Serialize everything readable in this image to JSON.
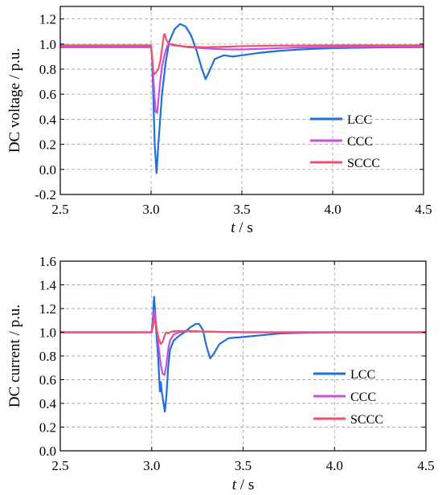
{
  "chart_data": [
    {
      "type": "line",
      "xlabel_italic": "t",
      "xlabel_unit": " / s",
      "ylabel": "DC voltage / p.u.",
      "xlim": [
        2.5,
        4.5
      ],
      "ylim": [
        -0.2,
        1.3
      ],
      "xticks": [
        "2.5",
        "3.0",
        "3.5",
        "4.0",
        "4.5"
      ],
      "yticks": [
        "-0.2",
        "0.0",
        "0.2",
        "0.4",
        "0.6",
        "0.8",
        "1.0",
        "1.2"
      ],
      "grid": true,
      "legend_position": "lower-right",
      "series": [
        {
          "name": "LCC",
          "color": "#1f6fd6",
          "points": [
            [
              2.5,
              0.975
            ],
            [
              3.0,
              0.975
            ],
            [
              3.005,
              0.9
            ],
            [
              3.012,
              0.6
            ],
            [
              3.02,
              0.2
            ],
            [
              3.03,
              -0.03
            ],
            [
              3.04,
              0.2
            ],
            [
              3.06,
              0.6
            ],
            [
              3.08,
              0.85
            ],
            [
              3.1,
              1.02
            ],
            [
              3.13,
              1.12
            ],
            [
              3.16,
              1.16
            ],
            [
              3.19,
              1.14
            ],
            [
              3.22,
              1.07
            ],
            [
              3.25,
              0.95
            ],
            [
              3.28,
              0.8
            ],
            [
              3.3,
              0.72
            ],
            [
              3.32,
              0.78
            ],
            [
              3.35,
              0.88
            ],
            [
              3.4,
              0.91
            ],
            [
              3.45,
              0.9
            ],
            [
              3.5,
              0.91
            ],
            [
              3.6,
              0.93
            ],
            [
              3.7,
              0.945
            ],
            [
              3.8,
              0.955
            ],
            [
              3.9,
              0.962
            ],
            [
              4.0,
              0.967
            ],
            [
              4.2,
              0.972
            ],
            [
              4.5,
              0.975
            ]
          ]
        },
        {
          "name": "CCC",
          "color": "#c84fe0",
          "points": [
            [
              2.5,
              0.98
            ],
            [
              3.0,
              0.98
            ],
            [
              3.008,
              0.85
            ],
            [
              3.018,
              0.6
            ],
            [
              3.025,
              0.46
            ],
            [
              3.033,
              0.45
            ],
            [
              3.04,
              0.55
            ],
            [
              3.05,
              0.7
            ],
            [
              3.06,
              0.82
            ],
            [
              3.075,
              0.92
            ],
            [
              3.09,
              0.99
            ],
            [
              3.11,
              1.0
            ],
            [
              3.14,
              0.99
            ],
            [
              3.2,
              0.975
            ],
            [
              3.3,
              0.965
            ],
            [
              3.4,
              0.958
            ],
            [
              3.5,
              0.957
            ],
            [
              3.6,
              0.962
            ],
            [
              3.7,
              0.967
            ],
            [
              3.8,
              0.972
            ],
            [
              4.0,
              0.976
            ],
            [
              4.5,
              0.98
            ]
          ]
        },
        {
          "name": "SCCC",
          "color": "#f0506e",
          "points": [
            [
              2.5,
              0.99
            ],
            [
              3.0,
              0.99
            ],
            [
              3.006,
              0.9
            ],
            [
              3.012,
              0.78
            ],
            [
              3.02,
              0.76
            ],
            [
              3.03,
              0.78
            ],
            [
              3.04,
              0.8
            ],
            [
              3.05,
              0.86
            ],
            [
              3.06,
              0.96
            ],
            [
              3.07,
              1.07
            ],
            [
              3.075,
              1.08
            ],
            [
              3.085,
              1.03
            ],
            [
              3.1,
              1.0
            ],
            [
              3.12,
              0.99
            ],
            [
              3.15,
              0.985
            ],
            [
              3.2,
              0.98
            ],
            [
              3.3,
              0.975
            ],
            [
              3.4,
              0.978
            ],
            [
              3.5,
              0.983
            ],
            [
              3.7,
              0.987
            ],
            [
              4.0,
              0.99
            ],
            [
              4.5,
              0.99
            ]
          ]
        }
      ]
    },
    {
      "type": "line",
      "xlabel_italic": "t",
      "xlabel_unit": " / s",
      "ylabel": "DC current / p.u.",
      "xlim": [
        2.5,
        4.5
      ],
      "ylim": [
        0.0,
        1.6
      ],
      "xticks": [
        "2.5",
        "3.0",
        "3.5",
        "4.0",
        "4.5"
      ],
      "yticks": [
        "0.0",
        "0.2",
        "0.4",
        "0.6",
        "0.8",
        "1.0",
        "1.2",
        "1.4",
        "1.6"
      ],
      "grid": true,
      "legend_position": "lower-right",
      "series": [
        {
          "name": "LCC",
          "color": "#1f6fd6",
          "points": [
            [
              2.5,
              1.0
            ],
            [
              3.0,
              1.0
            ],
            [
              3.008,
              1.15
            ],
            [
              3.013,
              1.3
            ],
            [
              3.018,
              1.2
            ],
            [
              3.025,
              1.0
            ],
            [
              3.035,
              0.8
            ],
            [
              3.045,
              0.5
            ],
            [
              3.05,
              0.58
            ],
            [
              3.055,
              0.5
            ],
            [
              3.065,
              0.4
            ],
            [
              3.072,
              0.33
            ],
            [
              3.08,
              0.45
            ],
            [
              3.09,
              0.7
            ],
            [
              3.1,
              0.85
            ],
            [
              3.12,
              0.93
            ],
            [
              3.15,
              0.97
            ],
            [
              3.18,
              1.0
            ],
            [
              3.21,
              1.04
            ],
            [
              3.24,
              1.07
            ],
            [
              3.26,
              1.07
            ],
            [
              3.28,
              1.02
            ],
            [
              3.3,
              0.88
            ],
            [
              3.32,
              0.78
            ],
            [
              3.34,
              0.82
            ],
            [
              3.37,
              0.9
            ],
            [
              3.42,
              0.95
            ],
            [
              3.5,
              0.96
            ],
            [
              3.6,
              0.975
            ],
            [
              3.7,
              0.99
            ],
            [
              3.8,
              0.995
            ],
            [
              4.0,
              1.0
            ],
            [
              4.5,
              1.0
            ]
          ]
        },
        {
          "name": "CCC",
          "color": "#c84fe0",
          "points": [
            [
              2.5,
              1.0
            ],
            [
              3.0,
              1.0
            ],
            [
              3.008,
              1.1
            ],
            [
              3.014,
              1.19
            ],
            [
              3.02,
              1.12
            ],
            [
              3.03,
              1.0
            ],
            [
              3.04,
              0.85
            ],
            [
              3.05,
              0.72
            ],
            [
              3.06,
              0.65
            ],
            [
              3.07,
              0.64
            ],
            [
              3.08,
              0.72
            ],
            [
              3.09,
              0.85
            ],
            [
              3.1,
              0.93
            ],
            [
              3.12,
              0.98
            ],
            [
              3.15,
              1.0
            ],
            [
              3.2,
              1.01
            ],
            [
              3.3,
              1.005
            ],
            [
              3.5,
              1.0
            ],
            [
              4.5,
              1.0
            ]
          ]
        },
        {
          "name": "SCCC",
          "color": "#f0506e",
          "points": [
            [
              2.5,
              1.0
            ],
            [
              3.0,
              1.0
            ],
            [
              3.008,
              1.06
            ],
            [
              3.014,
              1.12
            ],
            [
              3.02,
              1.08
            ],
            [
              3.03,
              1.0
            ],
            [
              3.04,
              0.94
            ],
            [
              3.05,
              0.9
            ],
            [
              3.06,
              0.92
            ],
            [
              3.07,
              0.97
            ],
            [
              3.08,
              1.0
            ],
            [
              3.09,
              0.99
            ],
            [
              3.1,
              1.0
            ],
            [
              3.12,
              1.01
            ],
            [
              3.2,
              1.01
            ],
            [
              3.3,
              1.005
            ],
            [
              3.5,
              1.0
            ],
            [
              4.5,
              1.0
            ]
          ]
        }
      ]
    }
  ]
}
